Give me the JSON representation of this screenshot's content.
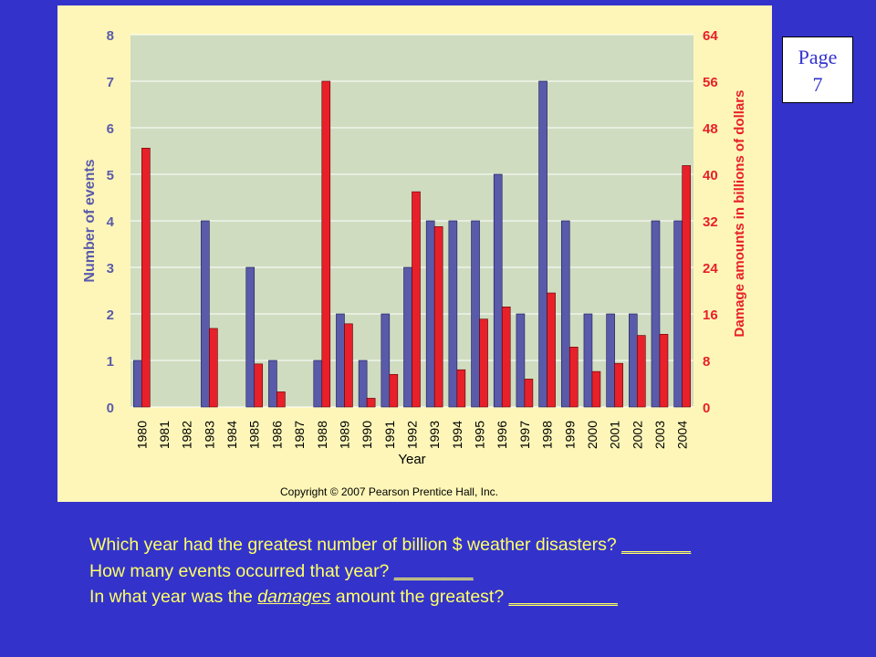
{
  "page_label": {
    "line1": "Page",
    "line2": "7"
  },
  "copyright": "Copyright © 2007 Pearson Prentice Hall, Inc.",
  "colors": {
    "events": "#5a5aaa",
    "damage": "#e8202a",
    "plot_bg": "#cfdcc0",
    "figure_bg": "#fdf6b8",
    "slide_bg": "#3333cc",
    "question_text": "#ffff66"
  },
  "questions": [
    {
      "parts": [
        "Which year had the greatest number of billion $ weather disasters? ",
        "_______"
      ]
    },
    {
      "parts": [
        "How many events occurred that year? ",
        "________"
      ]
    },
    {
      "parts": [
        "In what year was the ",
        "damages",
        " amount the greatest? ",
        "___________"
      ]
    }
  ],
  "chart_data": {
    "type": "bar",
    "title": "",
    "xlabel": "Year",
    "ylabel": "Number of events",
    "y2label": "Damage amounts in billions of dollars",
    "ylim": [
      0,
      8
    ],
    "y2lim": [
      0,
      64
    ],
    "yticks": [
      "0",
      "1",
      "2",
      "3",
      "4",
      "5",
      "6",
      "7",
      "8"
    ],
    "y2ticks": [
      "0",
      "8",
      "16",
      "24",
      "32",
      "40",
      "48",
      "56",
      "64"
    ],
    "grid": true,
    "categories": [
      "1980",
      "1981",
      "1982",
      "1983",
      "1984",
      "1985",
      "1986",
      "1987",
      "1988",
      "1989",
      "1990",
      "1991",
      "1992",
      "1993",
      "1994",
      "1995",
      "1996",
      "1997",
      "1998",
      "1999",
      "2000",
      "2001",
      "2002",
      "2003",
      "2004"
    ],
    "series": [
      {
        "axis": "left",
        "values": [
          1,
          0,
          0,
          4,
          0,
          3,
          1,
          0,
          1,
          2,
          1,
          2,
          3,
          4,
          4,
          4,
          5,
          2,
          7,
          4,
          2,
          2,
          2,
          4,
          4
        ]
      },
      {
        "axis": "right",
        "values": [
          44.5,
          0,
          0,
          13.5,
          0,
          7.4,
          2.6,
          0,
          56,
          14.3,
          1.5,
          5.6,
          37,
          31,
          6.4,
          15.1,
          17.2,
          4.8,
          19.6,
          10.3,
          6.1,
          7.5,
          12.3,
          12.5,
          41.5
        ]
      }
    ]
  }
}
